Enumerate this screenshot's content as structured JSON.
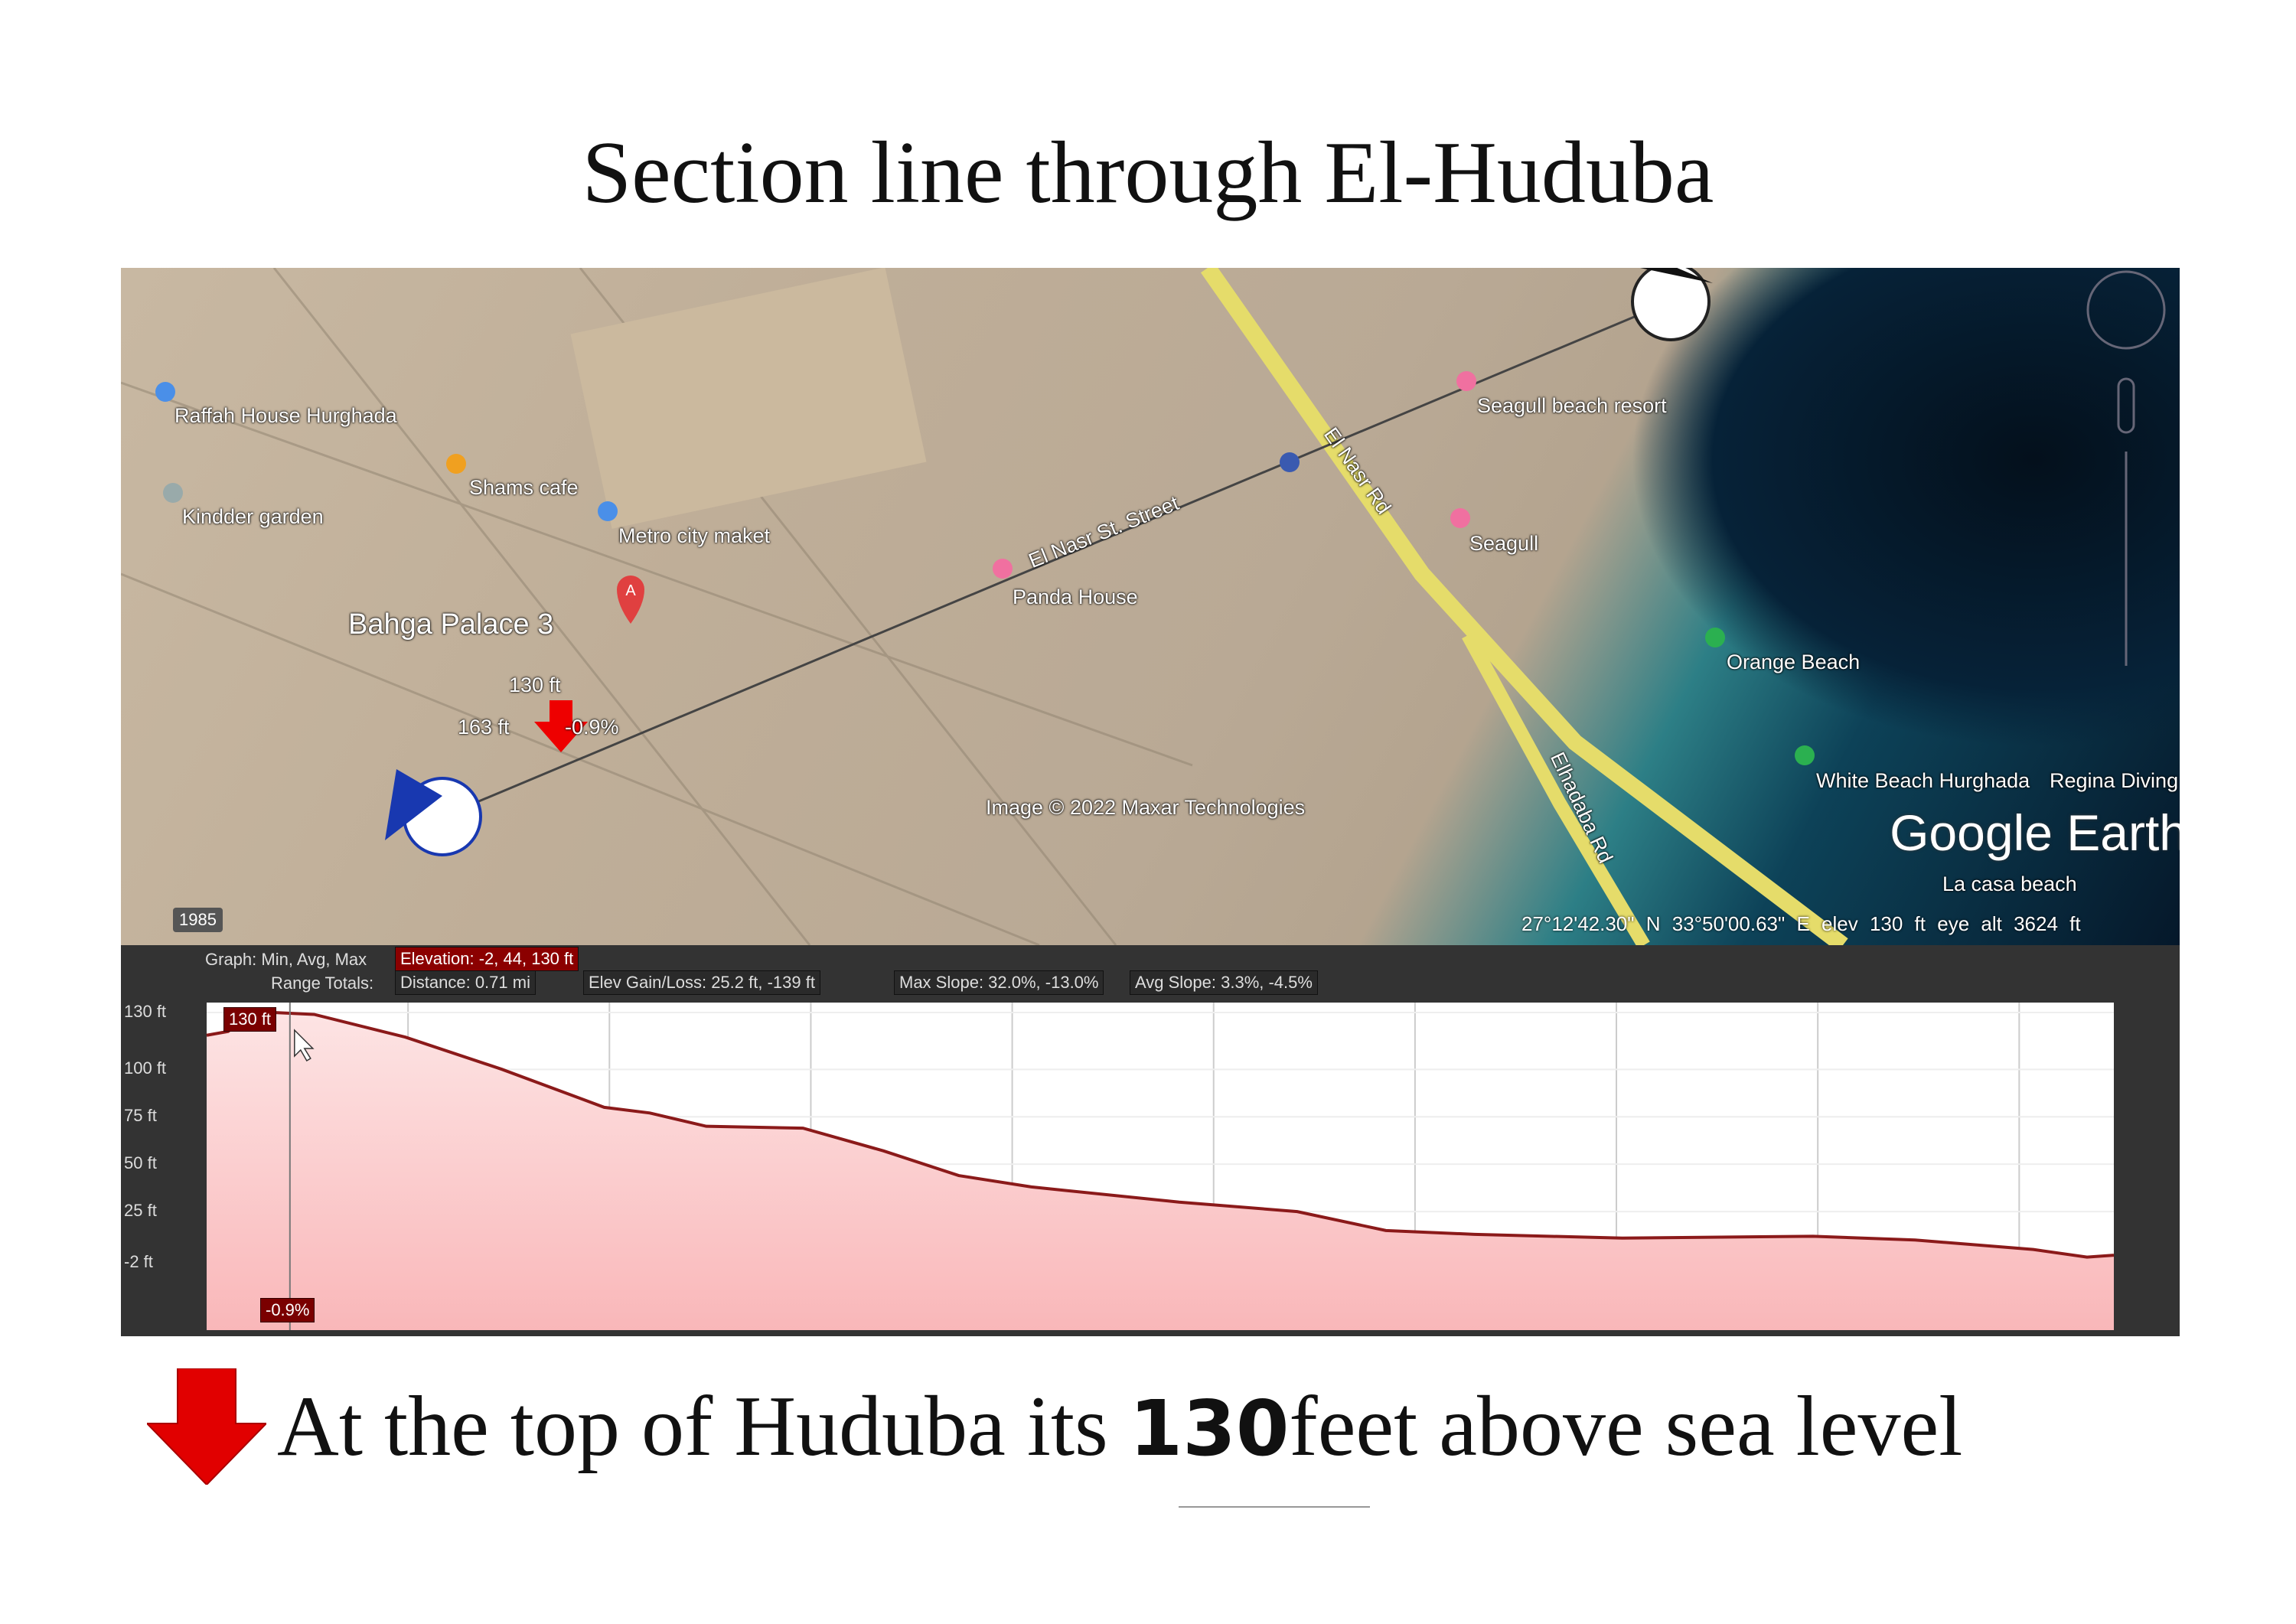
{
  "title": "Section line through El-Huduba",
  "map": {
    "labels": {
      "raffah": "Raffah House Hurghada",
      "shams": "Shams cafe",
      "kinder": "Kindder garden",
      "metro": "Metro city maket",
      "bahga": "Bahga Palace 3",
      "panda": "Panda House",
      "street": "El Nasr St. Street",
      "seagull_resort": "Seagull beach resort",
      "seagull": "Seagull",
      "orange": "Orange Beach",
      "white": "White Beach Hurghada",
      "lacasa": "La casa beach",
      "regina": "Regina Diving",
      "road": "Elhadaba Rd",
      "road2": "El Nasr Rd",
      "marker_elev": "130 ft",
      "marker_dist": "163 ft",
      "marker_slope": "-0.9%",
      "imagery": "Image © 2022 Maxar Technologies",
      "brand": "Google Earth",
      "year": "1985"
    },
    "status": {
      "lat": "27°12'42.30\" N",
      "lon": "33°50'00.63\" E",
      "elev": "elev  130 ft",
      "eye": "eye alt  3624 ft"
    },
    "colors": {
      "road": "#e5dc6a",
      "sea": "#05182a",
      "reef": "#2d7f86",
      "pin_a": "#e04040"
    }
  },
  "profile": {
    "graph_label": "Graph: Min, Avg, Max",
    "elevation": "Elevation: -2, 44, 130 ft",
    "range_label": "Range Totals:",
    "distance": "Distance: 0.71 mi",
    "gain_loss": "Elev Gain/Loss: 25.2 ft, -139 ft",
    "max_slope": "Max Slope: 32.0%, -13.0%",
    "avg_slope": "Avg Slope: 3.3%, -4.5%",
    "cursor_elev": "130 ft",
    "cursor_slope": "-0.9%"
  },
  "caption": {
    "pre": "At the top of Huduba its ",
    "num": "130",
    "post": "feet above sea level"
  },
  "chart_data": {
    "type": "area",
    "xlabel": "",
    "ylabel": "",
    "x_unit": "mi",
    "y_unit": "ft",
    "xlim": [
      0,
      0.71
    ],
    "y_ticks": [
      "130 ft",
      "100 ft",
      "75 ft",
      "50 ft",
      "25 ft",
      "-2 ft"
    ],
    "y_tick_values": [
      130,
      100,
      75,
      50,
      25,
      -2
    ],
    "ylim": [
      -2,
      130
    ],
    "grid": true,
    "fill_color": "#f9b7b9",
    "line_color": "#8b1a1a",
    "cursor_x": 0.031,
    "points": [
      [
        0,
        118
      ],
      [
        0.008,
        120
      ],
      [
        0.014,
        127
      ],
      [
        0.025,
        130
      ],
      [
        0.04,
        129
      ],
      [
        0.074,
        117
      ],
      [
        0.11,
        100
      ],
      [
        0.148,
        80
      ],
      [
        0.165,
        77
      ],
      [
        0.186,
        70
      ],
      [
        0.222,
        69
      ],
      [
        0.252,
        57
      ],
      [
        0.28,
        44
      ],
      [
        0.307,
        38
      ],
      [
        0.362,
        30
      ],
      [
        0.406,
        25
      ],
      [
        0.439,
        15
      ],
      [
        0.472,
        13
      ],
      [
        0.527,
        11
      ],
      [
        0.598,
        12
      ],
      [
        0.636,
        10
      ],
      [
        0.68,
        5
      ],
      [
        0.7,
        1
      ],
      [
        0.71,
        2
      ]
    ]
  }
}
